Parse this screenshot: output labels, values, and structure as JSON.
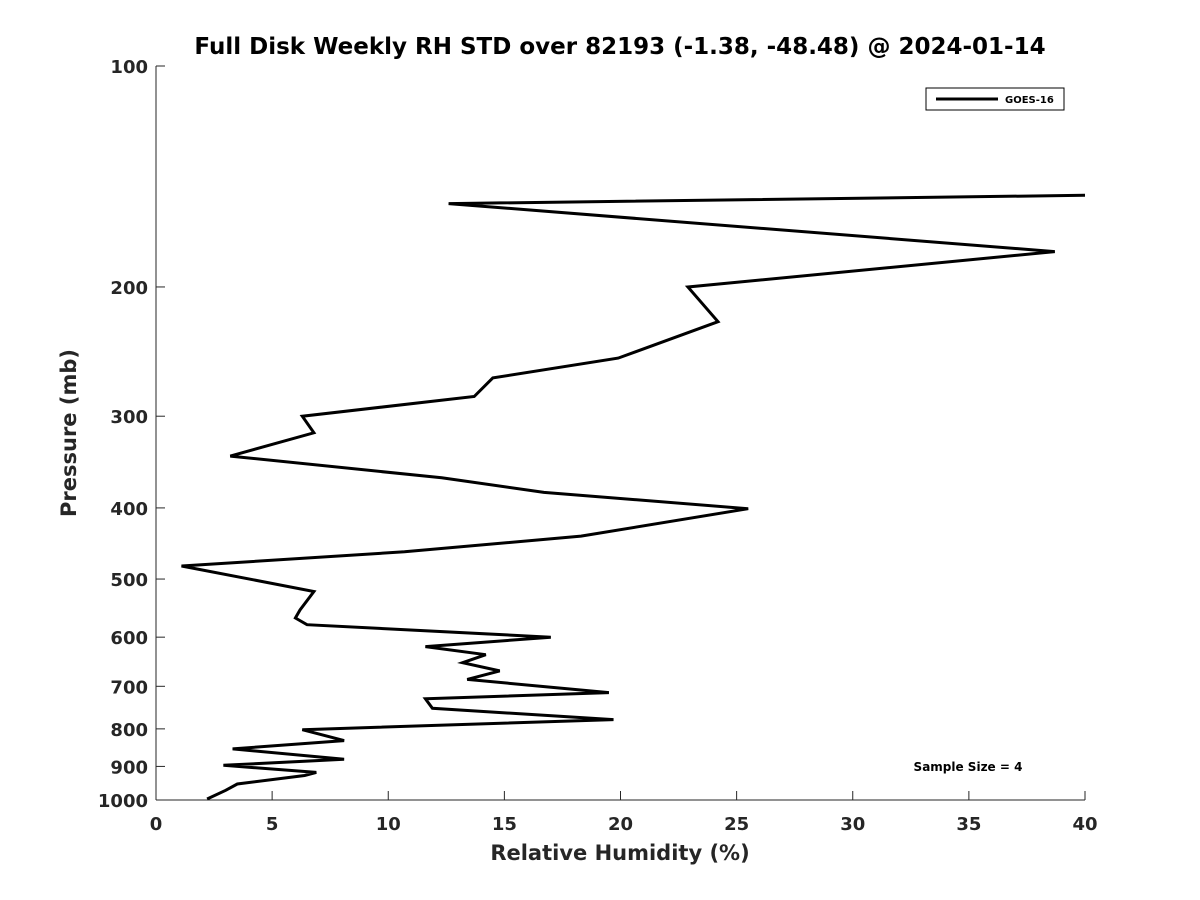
{
  "chart_data": {
    "type": "line",
    "title": "Full Disk Weekly RH STD over 82193 (-1.38, -48.48) @ 2024-01-14",
    "xlabel": "Relative Humidity (%)",
    "ylabel": "Pressure (mb)",
    "xlim": [
      0,
      40
    ],
    "ylim": [
      100,
      1000
    ],
    "y_scale": "log",
    "y_reversed": true,
    "x_ticks": [
      0,
      5,
      10,
      15,
      20,
      25,
      30,
      35,
      40
    ],
    "y_ticks": [
      100,
      200,
      300,
      400,
      500,
      600,
      700,
      800,
      900,
      1000
    ],
    "grid": false,
    "legend_position": "top-right",
    "annotation": "Sample Size = 4",
    "series": [
      {
        "name": "GOES-16",
        "color": "#000000",
        "points": [
          [
            40.0,
            150
          ],
          [
            12.6,
            154
          ],
          [
            38.7,
            179
          ],
          [
            22.9,
            200
          ],
          [
            24.2,
            223
          ],
          [
            19.9,
            250
          ],
          [
            14.5,
            266
          ],
          [
            13.7,
            282
          ],
          [
            6.3,
            300
          ],
          [
            6.8,
            316
          ],
          [
            3.2,
            340
          ],
          [
            12.3,
            364
          ],
          [
            16.7,
            381
          ],
          [
            25.5,
            401
          ],
          [
            18.3,
            437
          ],
          [
            10.7,
            459
          ],
          [
            1.1,
            480
          ],
          [
            6.8,
            520
          ],
          [
            6.2,
            551
          ],
          [
            6.0,
            565
          ],
          [
            6.5,
            577
          ],
          [
            17.0,
            600
          ],
          [
            11.6,
            618
          ],
          [
            14.2,
            634
          ],
          [
            13.2,
            650
          ],
          [
            14.8,
            667
          ],
          [
            13.4,
            685
          ],
          [
            19.5,
            714
          ],
          [
            11.6,
            728
          ],
          [
            11.9,
            750
          ],
          [
            19.7,
            777
          ],
          [
            6.3,
            802
          ],
          [
            8.1,
            830
          ],
          [
            3.3,
            852
          ],
          [
            8.1,
            880
          ],
          [
            2.9,
            897
          ],
          [
            6.9,
            917
          ],
          [
            6.4,
            926
          ],
          [
            3.5,
            951
          ],
          [
            3.0,
            970
          ],
          [
            2.2,
            997
          ]
        ]
      }
    ]
  }
}
